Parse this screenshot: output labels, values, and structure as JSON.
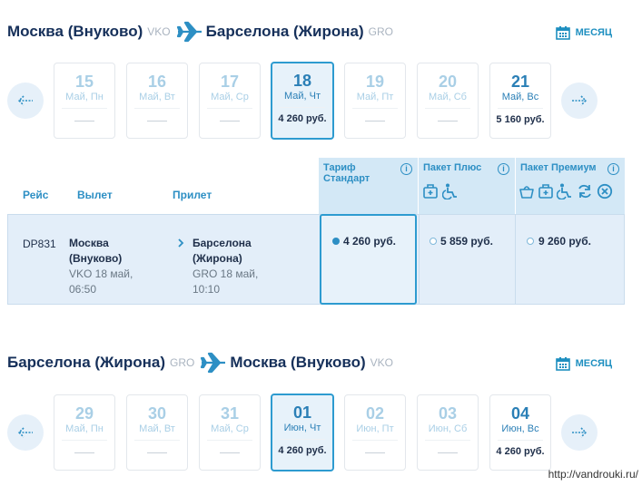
{
  "outbound": {
    "from_city": "Москва (Внуково)",
    "from_code": "VKO",
    "to_city": "Барселона (Жирона)",
    "to_code": "GRO",
    "month_label": "МЕСЯЦ",
    "days": [
      {
        "num": "15",
        "label": "Май, Пн",
        "price": ""
      },
      {
        "num": "16",
        "label": "Май, Вт",
        "price": ""
      },
      {
        "num": "17",
        "label": "Май, Ср",
        "price": ""
      },
      {
        "num": "18",
        "label": "Май, Чт",
        "price": "4 260 руб."
      },
      {
        "num": "19",
        "label": "Май, Пт",
        "price": ""
      },
      {
        "num": "20",
        "label": "Май, Сб",
        "price": ""
      },
      {
        "num": "21",
        "label": "Май, Вс",
        "price": "5 160 руб."
      }
    ]
  },
  "table": {
    "col_flight": "Рейс",
    "col_departure": "Вылет",
    "col_arrival": "Прилет",
    "tariffs": [
      {
        "name_line1": "Тариф",
        "name_line2": "Стандарт"
      },
      {
        "name_line1": "Пакет Плюс",
        "name_line2": ""
      },
      {
        "name_line1": "Пакет Премиум",
        "name_line2": ""
      }
    ],
    "flight": {
      "number": "DP831",
      "dep_city_line1": "Москва",
      "dep_city_line2": "(Внуково)",
      "dep_code_date": "VKO 18 май,",
      "dep_time": "06:50",
      "arr_city_line1": "Барселона",
      "arr_city_line2": "(Жирона)",
      "arr_code_date": "GRO 18 май,",
      "arr_time": "10:10",
      "prices": [
        "4 260 руб.",
        "5 859 руб.",
        "9 260 руб."
      ]
    }
  },
  "return": {
    "from_city": "Барселона (Жирона)",
    "from_code": "GRO",
    "to_city": "Москва (Внуково)",
    "to_code": "VKO",
    "month_label": "МЕСЯЦ",
    "days": [
      {
        "num": "29",
        "label": "Май, Пн",
        "price": ""
      },
      {
        "num": "30",
        "label": "Май, Вт",
        "price": ""
      },
      {
        "num": "31",
        "label": "Май, Ср",
        "price": ""
      },
      {
        "num": "01",
        "label": "Июн, Чт",
        "price": "4 260 руб."
      },
      {
        "num": "02",
        "label": "Июн, Пт",
        "price": ""
      },
      {
        "num": "03",
        "label": "Июн, Сб",
        "price": ""
      },
      {
        "num": "04",
        "label": "Июн, Вс",
        "price": "4 260 руб."
      }
    ]
  },
  "watermark": "http://vandrouki.ru/",
  "icons": [
    "airplane-icon",
    "calendar-icon",
    "arrow-left-icon",
    "arrow-right-icon",
    "info-icon",
    "luggage-icon",
    "wheelchair-icon",
    "bag-icon",
    "exchange-icon",
    "cancel-icon"
  ],
  "colors": {
    "accent": "#2d8fc4",
    "title": "#16305a",
    "selected_bg": "#e7f2fa",
    "row_bg": "#e3eef9",
    "header_bg": "#d3e8f6"
  }
}
